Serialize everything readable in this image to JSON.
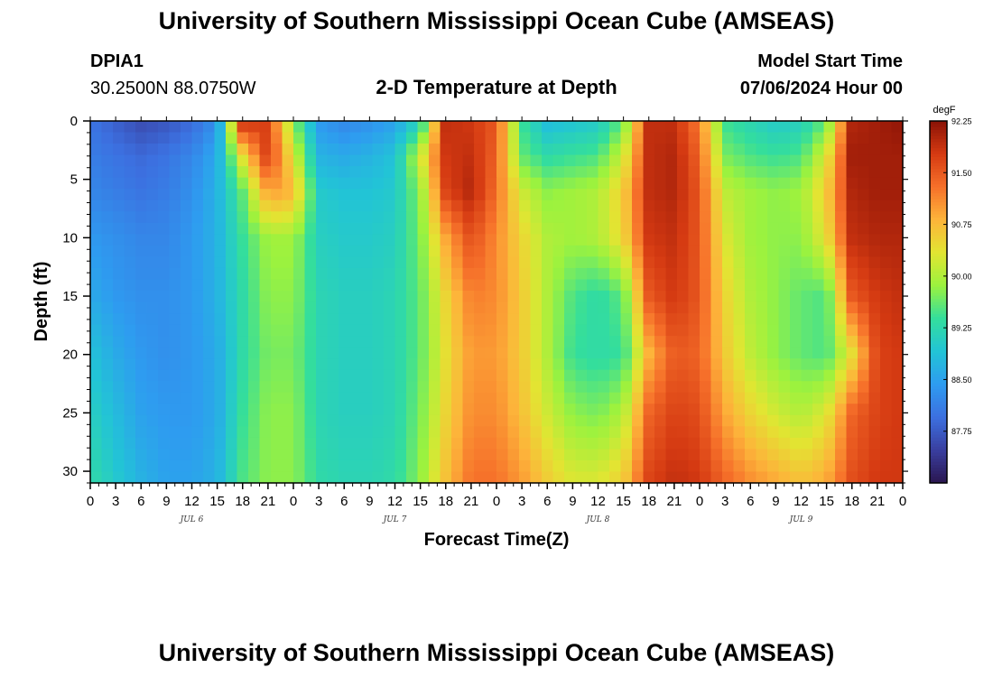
{
  "header": {
    "title": "University of Southern Mississippi Ocean Cube (AMSEAS)",
    "station_id": "DPIA1",
    "coordinates": "30.2500N  88.0750W",
    "plot_title": "2-D Temperature at Depth",
    "model_start_label": "Model Start Time",
    "model_start_value": "07/06/2024 Hour 00"
  },
  "footer": {
    "title": "University of Southern Mississippi Ocean Cube (AMSEAS)"
  },
  "chart_data": {
    "type": "heatmap",
    "title": "2-D Temperature at Depth",
    "xlabel": "Forecast Time(Z)",
    "ylabel": "Depth (ft)",
    "x_unit": "hours since model start",
    "xlim": [
      0,
      96
    ],
    "ylim": [
      0,
      31
    ],
    "y_inverted": true,
    "x_tick_labels": [
      "0",
      "3",
      "6",
      "9",
      "12",
      "15",
      "18",
      "21",
      "0",
      "3",
      "6",
      "9",
      "12",
      "15",
      "18",
      "21",
      "0",
      "3",
      "6",
      "9",
      "12",
      "15",
      "18",
      "21",
      "0",
      "3",
      "6",
      "9",
      "12",
      "15",
      "18",
      "21",
      "0"
    ],
    "y_tick_labels": [
      "0",
      "5",
      "10",
      "15",
      "20",
      "25",
      "30"
    ],
    "y_ticks": [
      0,
      5,
      10,
      15,
      20,
      25,
      30
    ],
    "day_labels": [
      "JUL 6",
      "JUL 7",
      "JUL 8",
      "JUL 9"
    ],
    "colorbar": {
      "unit": "degF",
      "range": [
        87.0,
        92.25
      ],
      "tick_labels": [
        "92.25",
        "91.50",
        "90.75",
        "90.00",
        "89.25",
        "88.50",
        "87.75"
      ],
      "tick_values": [
        92.25,
        91.5,
        90.75,
        90.0,
        89.25,
        88.5,
        87.75
      ],
      "colors": [
        "#2a1650",
        "#3a3fa0",
        "#3c70e0",
        "#2e9cf0",
        "#22c4d6",
        "#34de9c",
        "#9cf23e",
        "#e2e532",
        "#fdb43a",
        "#f6702a",
        "#d53a12",
        "#8a1206"
      ]
    },
    "grid": false,
    "legend": "colorbar-right",
    "depths": [
      0,
      3,
      6,
      10,
      15,
      20,
      25,
      31
    ],
    "hours": [
      0,
      3,
      6,
      9,
      12,
      15,
      18,
      21,
      24,
      27,
      30,
      33,
      36,
      39,
      42,
      45,
      48,
      51,
      54,
      57,
      60,
      63,
      66,
      69,
      72,
      75,
      78,
      81,
      84,
      87,
      90,
      93,
      96
    ],
    "temperature": [
      [
        88.0,
        87.8,
        87.6,
        87.7,
        87.9,
        88.3,
        91.9,
        91.7,
        89.8,
        88.4,
        88.2,
        88.3,
        88.5,
        89.1,
        91.9,
        91.8,
        91.5,
        89.4,
        88.8,
        88.9,
        89.0,
        89.6,
        91.9,
        91.9,
        91.2,
        89.4,
        89.2,
        89.0,
        89.1,
        89.6,
        92.0,
        92.1,
        92.2
      ],
      [
        88.1,
        88.0,
        87.9,
        88.0,
        88.2,
        88.6,
        90.4,
        91.8,
        90.3,
        88.7,
        88.6,
        88.7,
        88.9,
        90.2,
        91.8,
        91.9,
        91.4,
        89.6,
        89.3,
        89.4,
        89.5,
        90.2,
        91.9,
        92.0,
        91.4,
        89.7,
        89.5,
        89.4,
        89.5,
        90.3,
        92.1,
        92.1,
        92.1
      ],
      [
        88.2,
        88.1,
        88.0,
        88.1,
        88.3,
        88.7,
        89.6,
        91.0,
        90.8,
        89.0,
        88.9,
        88.9,
        89.0,
        89.8,
        91.7,
        92.0,
        91.3,
        90.2,
        89.8,
        89.9,
        90.0,
        90.6,
        91.9,
        92.0,
        91.5,
        90.1,
        89.9,
        89.8,
        89.9,
        90.6,
        92.0,
        92.1,
        92.1
      ],
      [
        88.4,
        88.3,
        88.2,
        88.2,
        88.4,
        88.7,
        89.4,
        89.9,
        89.9,
        89.1,
        89.0,
        89.0,
        89.1,
        89.7,
        90.9,
        91.6,
        91.1,
        90.5,
        90.0,
        89.9,
        90.0,
        90.5,
        91.8,
        91.9,
        91.5,
        90.3,
        89.9,
        89.8,
        89.8,
        90.4,
        91.9,
        92.0,
        92.0
      ],
      [
        88.6,
        88.4,
        88.3,
        88.3,
        88.4,
        88.7,
        89.3,
        89.8,
        89.8,
        89.2,
        89.1,
        89.1,
        89.2,
        89.6,
        90.5,
        91.2,
        91.1,
        90.6,
        90.0,
        89.5,
        89.3,
        89.6,
        91.5,
        91.8,
        91.5,
        90.5,
        90.0,
        89.8,
        89.6,
        89.5,
        91.5,
        91.8,
        91.9
      ],
      [
        88.9,
        88.6,
        88.4,
        88.3,
        88.4,
        88.6,
        89.3,
        89.7,
        89.7,
        89.2,
        89.1,
        89.1,
        89.2,
        89.6,
        90.4,
        91.0,
        91.0,
        90.6,
        90.0,
        89.4,
        89.3,
        89.4,
        90.8,
        91.5,
        91.4,
        90.6,
        90.1,
        89.8,
        89.6,
        89.5,
        90.4,
        91.7,
        91.8
      ],
      [
        89.1,
        88.8,
        88.5,
        88.4,
        88.4,
        88.6,
        89.4,
        89.8,
        89.8,
        89.2,
        89.1,
        89.1,
        89.2,
        89.7,
        90.5,
        91.1,
        91.1,
        90.7,
        90.2,
        89.8,
        89.7,
        90.0,
        91.4,
        91.7,
        91.6,
        90.9,
        90.5,
        90.2,
        90.0,
        90.3,
        91.4,
        91.7,
        91.8
      ],
      [
        89.3,
        89.0,
        88.7,
        88.5,
        88.5,
        88.7,
        89.5,
        89.8,
        89.8,
        89.3,
        89.2,
        89.2,
        89.3,
        89.8,
        90.7,
        91.3,
        91.3,
        91.0,
        90.6,
        90.3,
        90.3,
        90.6,
        91.7,
        91.9,
        91.8,
        91.4,
        91.1,
        90.9,
        90.7,
        90.9,
        91.6,
        91.8,
        91.8
      ]
    ]
  }
}
